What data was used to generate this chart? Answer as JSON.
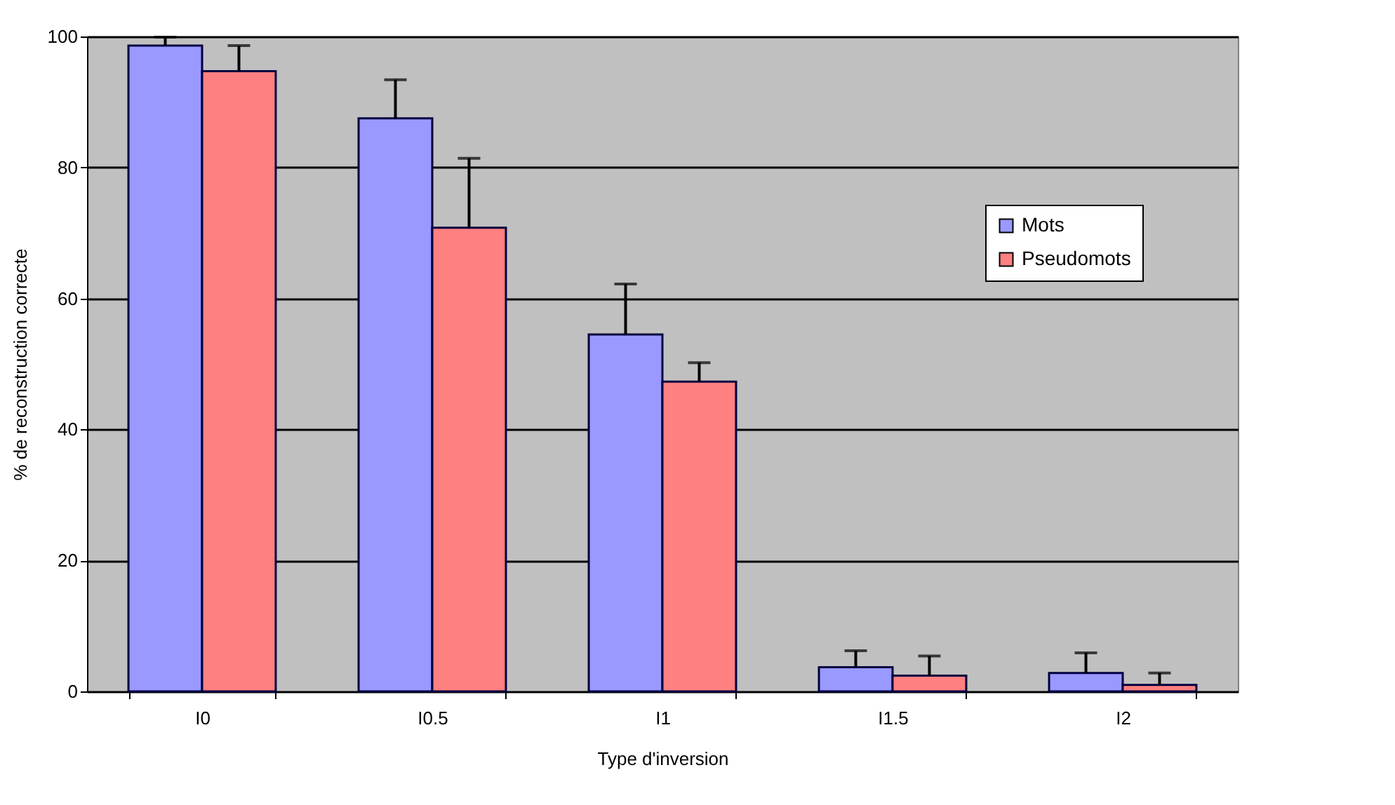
{
  "chart_data": {
    "type": "bar",
    "xlabel": "Type d'inversion",
    "ylabel": "% de reconstruction correcte",
    "categories": [
      "I0",
      "I0.5",
      "I1",
      "I1.5",
      "I2"
    ],
    "series": [
      {
        "name": "Mots",
        "color": "#9999ff",
        "values": [
          98.6,
          87.5,
          54.5,
          3.7,
          2.8
        ],
        "errors": [
          [
            98.6,
            99.9
          ],
          [
            87.5,
            93.4
          ],
          [
            54.5,
            62.2
          ],
          [
            3.7,
            6.2
          ],
          [
            2.8,
            5.9
          ]
        ]
      },
      {
        "name": "Pseudomots",
        "color": "#ff8080",
        "values": [
          94.7,
          70.8,
          47.3,
          2.4,
          1.0
        ],
        "errors": [
          [
            94.7,
            98.6
          ],
          [
            70.8,
            81.4
          ],
          [
            47.3,
            50.2
          ],
          [
            2.4,
            5.4
          ],
          [
            1.0,
            2.8
          ]
        ]
      }
    ],
    "ylim": [
      0,
      100
    ],
    "yticks": [
      0,
      20,
      40,
      60,
      80,
      100
    ],
    "grid": "y",
    "legend": "right"
  }
}
